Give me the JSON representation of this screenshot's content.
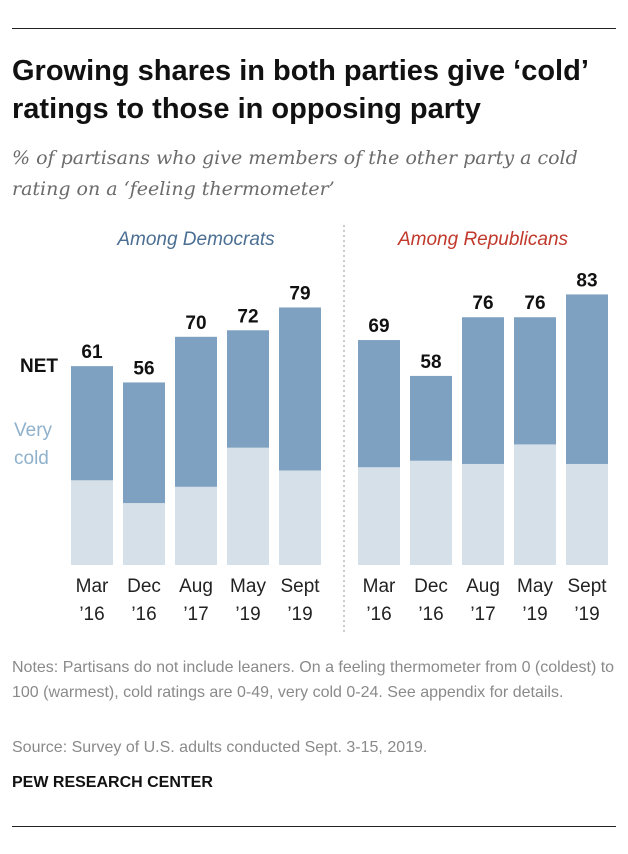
{
  "title": "Growing shares in both parties give ‘cold’ ratings to those in opposing party",
  "subtitle": "% of partisans who give members of the other party a cold rating on a ‘feeling thermometer’",
  "legend": {
    "net": "NET",
    "very_cold": "Very cold"
  },
  "colors": {
    "net": "#7ea1c1",
    "very_cold": "#d6e0e9",
    "democrats": "#4b6f93",
    "republicans": "#c0392b"
  },
  "chart_data": [
    {
      "type": "bar",
      "panel": "Among Democrats",
      "categories": [
        [
          "Mar",
          "’16"
        ],
        [
          "Dec",
          "’16"
        ],
        [
          "Aug",
          "’17"
        ],
        [
          "May",
          "’19"
        ],
        [
          "Sept",
          "’19"
        ]
      ],
      "series": [
        {
          "name": "NET",
          "values": [
            61,
            56,
            70,
            72,
            79
          ]
        },
        {
          "name": "Very cold",
          "values": [
            26,
            19,
            24,
            36,
            29
          ]
        }
      ],
      "ylim": [
        0,
        100
      ]
    },
    {
      "type": "bar",
      "panel": "Among Republicans",
      "categories": [
        [
          "Mar",
          "’16"
        ],
        [
          "Dec",
          "’16"
        ],
        [
          "Aug",
          "’17"
        ],
        [
          "May",
          "’19"
        ],
        [
          "Sept",
          "’19"
        ]
      ],
      "series": [
        {
          "name": "NET",
          "values": [
            69,
            58,
            76,
            76,
            83
          ]
        },
        {
          "name": "Very cold",
          "values": [
            30,
            32,
            31,
            37,
            31
          ]
        }
      ],
      "ylim": [
        0,
        100
      ]
    }
  ],
  "notes": "Notes: Partisans do not include leaners. On a feeling thermometer from 0 (coldest) to 100 (warmest), cold ratings are 0-49, very cold 0-24. See appendix for details.",
  "source": "Source: Survey of U.S. adults conducted Sept. 3-15, 2019.",
  "brand": "PEW RESEARCH CENTER"
}
